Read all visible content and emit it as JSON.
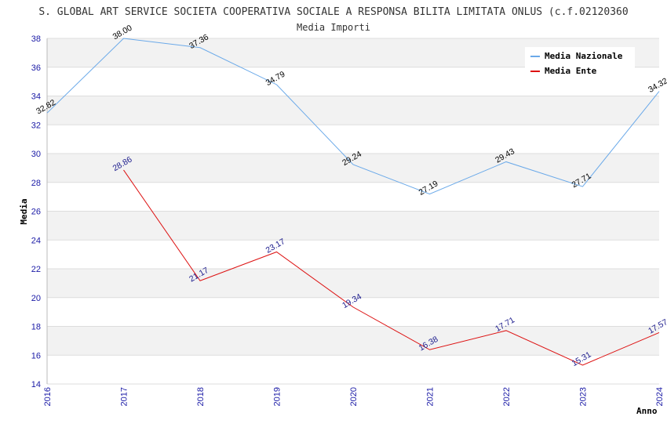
{
  "chart_data": {
    "type": "line",
    "title": "S. GLOBAL ART SERVICE SOCIETA COOPERATIVA SOCIALE A RESPONSA BILITA LIMITATA ONLUS (c.f.02120360",
    "subtitle": "Media Importi",
    "xlabel": "Anno",
    "ylabel": "Media",
    "ylim": [
      14,
      38
    ],
    "yticks": [
      "14",
      "16",
      "18",
      "20",
      "22",
      "24",
      "26",
      "28",
      "30",
      "32",
      "34",
      "36",
      "38"
    ],
    "x": [
      "2016",
      "2017",
      "2018",
      "2019",
      "2020",
      "2021",
      "2022",
      "2023",
      "2024"
    ],
    "legend_position": "top-right",
    "grid": true,
    "series": [
      {
        "name": "Media Nazionale",
        "color": "#6aa9e9",
        "label_color": "#000000",
        "values": [
          32.82,
          38.0,
          37.36,
          34.79,
          29.24,
          27.19,
          29.43,
          27.71,
          34.32
        ],
        "labels": [
          "32.82",
          "38.00",
          "37.36",
          "34.79",
          "29.24",
          "27.19",
          "29.43",
          "27.71",
          "34.32"
        ]
      },
      {
        "name": "Media Ente",
        "color": "#dd1111",
        "label_color": "#1a1a8c",
        "values": [
          null,
          28.86,
          21.17,
          23.17,
          19.34,
          16.38,
          17.71,
          15.31,
          17.57
        ],
        "labels": [
          null,
          "28.86",
          "21.17",
          "23.17",
          "19.34",
          "16.38",
          "17.71",
          "15.31",
          "17.57"
        ]
      }
    ]
  }
}
